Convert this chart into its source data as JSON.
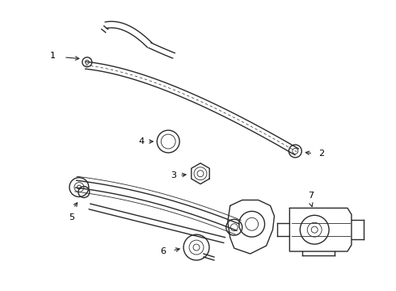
{
  "bg_color": "#ffffff",
  "line_color": "#2a2a2a",
  "label_color": "#000000",
  "lw_main": 1.0,
  "lw_thin": 0.6,
  "lw_thick": 1.3
}
